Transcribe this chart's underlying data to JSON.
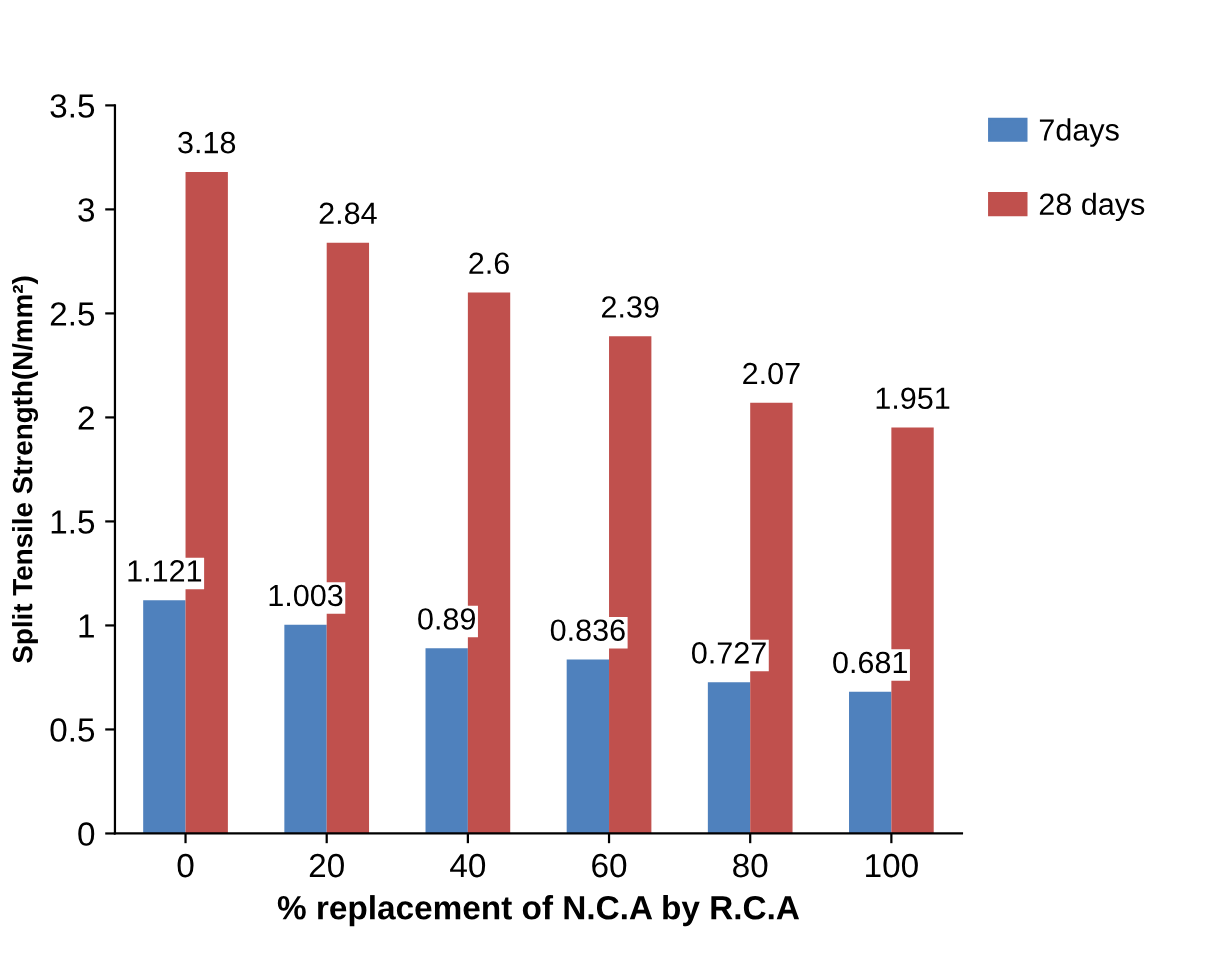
{
  "chart_data": {
    "type": "bar",
    "xlabel": "% replacement of N.C.A by R.C.A",
    "ylabel": "Split Tensile Strength(N/mm²)",
    "categories": [
      "0",
      "20",
      "40",
      "60",
      "80",
      "100"
    ],
    "series": [
      {
        "name": "7days",
        "color": "#4f81bd",
        "values": [
          1.121,
          1.003,
          0.89,
          0.836,
          0.727,
          0.681
        ]
      },
      {
        "name": "28 days",
        "color": "#c0504d",
        "values": [
          3.18,
          2.84,
          2.6,
          2.39,
          2.07,
          1.951
        ]
      }
    ],
    "ylim": [
      0,
      3.5
    ],
    "yticks": [
      0,
      0.5,
      1,
      1.5,
      2,
      2.5,
      3,
      3.5
    ],
    "data_labels": true,
    "legend": "top right",
    "grid": false
  }
}
